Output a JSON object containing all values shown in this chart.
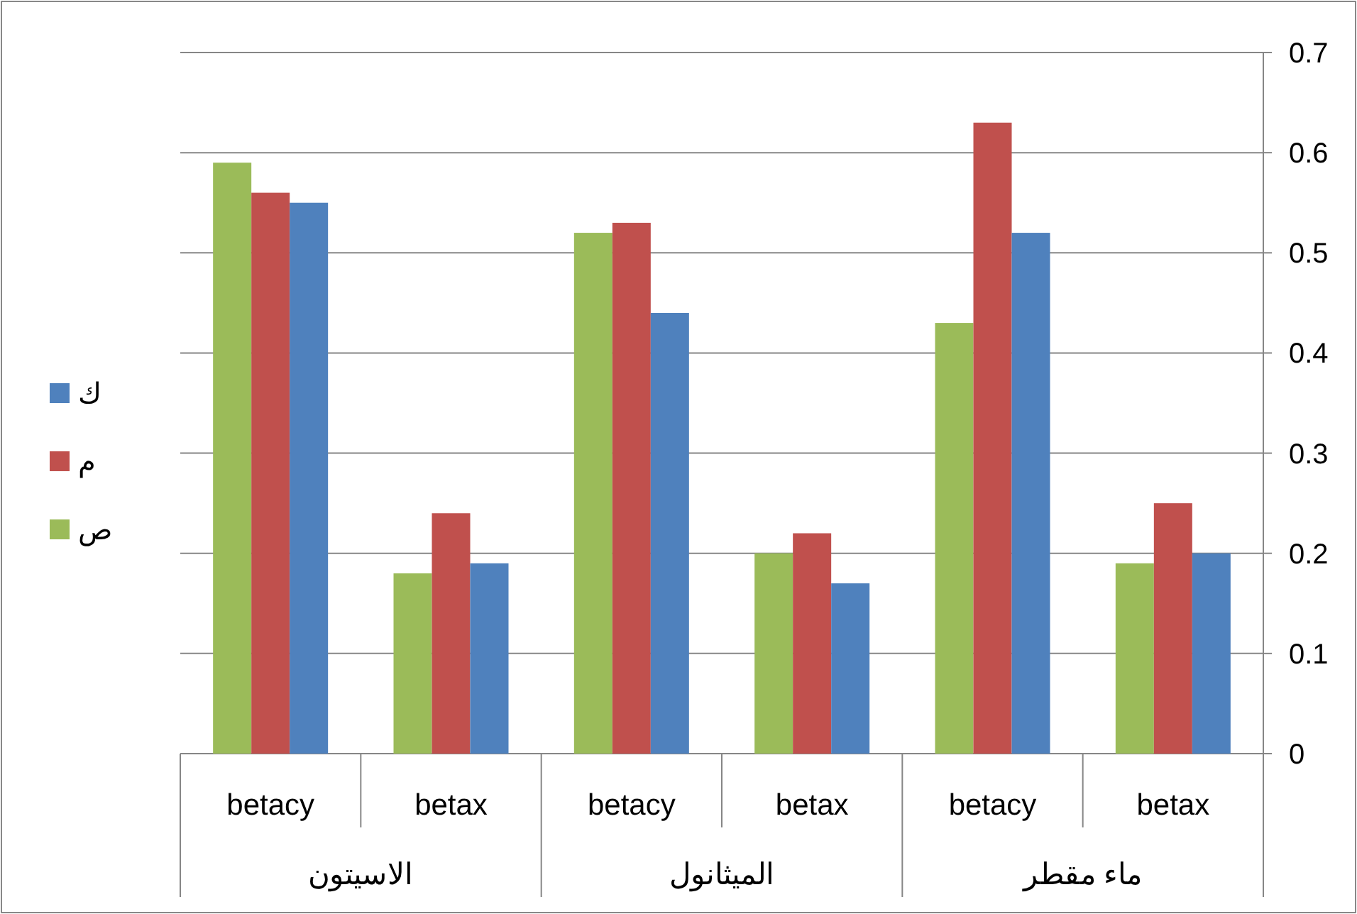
{
  "chart_data": {
    "type": "bar",
    "categories": [
      "betacy",
      "betax",
      "betacy",
      "betax",
      "betacy",
      "betax"
    ],
    "annotations": [
      "الاسيتون",
      "الميثانول",
      "ماء مقطر"
    ],
    "series": [
      {
        "name": "ص",
        "color": "#9bbb59",
        "values": [
          0.59,
          0.18,
          0.52,
          0.2,
          0.43,
          0.19
        ]
      },
      {
        "name": "م",
        "color": "#c0504d",
        "values": [
          0.56,
          0.24,
          0.53,
          0.22,
          0.63,
          0.25
        ]
      },
      {
        "name": "ك",
        "color": "#4f81bd",
        "values": [
          0.55,
          0.19,
          0.44,
          0.17,
          0.52,
          0.2
        ]
      }
    ],
    "ylim": [
      0,
      0.7
    ],
    "yticks": [
      0,
      0.1,
      0.2,
      0.3,
      0.4,
      0.5,
      0.6,
      0.7
    ],
    "grid": "y",
    "legend": "left"
  }
}
